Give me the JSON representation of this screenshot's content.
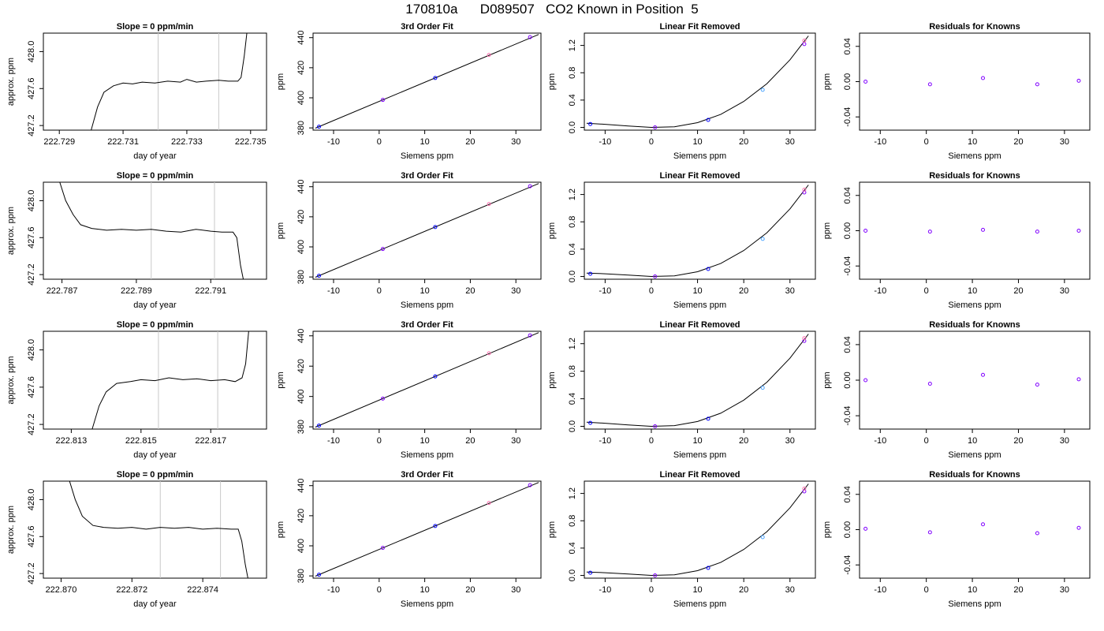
{
  "title": "170810a      D089507   CO2 Known in Position  5",
  "colors": {
    "line": "#000000",
    "grid_marker": "#c8c8c8",
    "point_purple": "#8000ff",
    "point_blue": "#0000ff",
    "point_light_blue": "#4aa3ff",
    "point_pink": "#ff70b0",
    "frame": "#000000"
  },
  "chart_data": [
    {
      "type": "line",
      "title": "Slope =  0  ppm/min",
      "xlabel": "day of year",
      "ylabel": "approx. ppm",
      "xlim": [
        222.7285,
        222.7355
      ],
      "ylim": [
        427.15,
        428.2
      ],
      "xticks": [
        "222.729",
        "222.731",
        "222.733",
        "222.735"
      ],
      "yticks": [
        "427.2",
        "427.6",
        "428.0"
      ],
      "vlines": [
        222.7321,
        222.734
      ],
      "trace": [
        [
          222.73,
          427.15
        ],
        [
          222.7302,
          427.4
        ],
        [
          222.7304,
          427.56
        ],
        [
          222.7307,
          427.63
        ],
        [
          222.731,
          427.66
        ],
        [
          222.7313,
          427.65
        ],
        [
          222.7316,
          427.67
        ],
        [
          222.732,
          427.66
        ],
        [
          222.7324,
          427.68
        ],
        [
          222.7328,
          427.67
        ],
        [
          222.733,
          427.7
        ],
        [
          222.7333,
          427.67
        ],
        [
          222.7336,
          427.68
        ],
        [
          222.734,
          427.69
        ],
        [
          222.7343,
          427.68
        ],
        [
          222.7346,
          427.68
        ],
        [
          222.7347,
          427.72
        ],
        [
          222.7348,
          427.95
        ],
        [
          222.7349,
          428.25
        ]
      ]
    },
    {
      "type": "scatter",
      "title": "3rd Order Fit",
      "xlabel": "Siemens ppm",
      "ylabel": "ppm",
      "xlim": [
        -14.5,
        35.5
      ],
      "ylim": [
        378.5,
        443
      ],
      "xticks": [
        "-10",
        "0",
        "10",
        "20",
        "30"
      ],
      "yticks": [
        "380",
        "400",
        "420",
        "440"
      ],
      "points": [
        [
          -13.2,
          380.8
        ],
        [
          0.8,
          398.6
        ],
        [
          12.3,
          413.2
        ],
        [
          24.1,
          428.5
        ],
        [
          33.1,
          440.3
        ]
      ],
      "curve": [
        [
          -14,
          379.8
        ],
        [
          35,
          442.1
        ]
      ]
    },
    {
      "type": "scatter",
      "title": "Linear Fit Removed",
      "xlabel": "Siemens ppm",
      "ylabel": "ppm",
      "xlim": [
        -14.5,
        35.5
      ],
      "ylim": [
        -0.04,
        1.38
      ],
      "xticks": [
        "-10",
        "0",
        "10",
        "20",
        "30"
      ],
      "yticks": [
        "0.0",
        "0.4",
        "0.8",
        "1.2"
      ],
      "points": [
        [
          -13.2,
          0.05
        ],
        [
          0.8,
          0.0
        ],
        [
          12.3,
          0.11
        ],
        [
          24.1,
          0.55
        ],
        [
          33.1,
          1.22
        ],
        [
          33.1,
          1.27
        ]
      ],
      "curve": [
        [
          -14,
          0.06
        ],
        [
          -10,
          0.045
        ],
        [
          -5,
          0.02
        ],
        [
          0,
          0.0
        ],
        [
          5,
          0.01
        ],
        [
          10,
          0.07
        ],
        [
          15,
          0.19
        ],
        [
          20,
          0.38
        ],
        [
          25,
          0.64
        ],
        [
          30,
          0.99
        ],
        [
          34,
          1.34
        ]
      ]
    },
    {
      "type": "scatter",
      "title": "Residuals for Knowns",
      "xlabel": "Siemens ppm",
      "ylabel": "ppm",
      "xlim": [
        -14.5,
        35.5
      ],
      "ylim": [
        -0.055,
        0.055
      ],
      "xticks": [
        "-10",
        "0",
        "10",
        "20",
        "30"
      ],
      "yticks": [
        "-0.04",
        "0.00",
        "0.04"
      ],
      "points": [
        [
          -13.2,
          0.0
        ],
        [
          0.8,
          -0.003
        ],
        [
          12.3,
          0.004
        ],
        [
          24.1,
          -0.003
        ],
        [
          33.1,
          0.001
        ]
      ]
    },
    {
      "type": "line",
      "title": "Slope =  0  ppm/min",
      "xlabel": "day of year",
      "ylabel": "approx. ppm",
      "xlim": [
        222.7865,
        222.7925
      ],
      "ylim": [
        427.15,
        428.2
      ],
      "xticks": [
        "222.787",
        "222.789",
        "222.791"
      ],
      "yticks": [
        "427.2",
        "427.6",
        "428.0"
      ],
      "vlines": [
        222.7894,
        222.7911
      ],
      "trace": [
        [
          222.7869,
          428.25
        ],
        [
          222.7871,
          428.0
        ],
        [
          222.7873,
          427.85
        ],
        [
          222.7875,
          427.74
        ],
        [
          222.7878,
          427.7
        ],
        [
          222.7882,
          427.68
        ],
        [
          222.7886,
          427.69
        ],
        [
          222.789,
          427.68
        ],
        [
          222.7894,
          427.69
        ],
        [
          222.7898,
          427.67
        ],
        [
          222.7902,
          427.66
        ],
        [
          222.7906,
          427.69
        ],
        [
          222.791,
          427.67
        ],
        [
          222.7913,
          427.66
        ],
        [
          222.7916,
          427.66
        ],
        [
          222.7917,
          427.6
        ],
        [
          222.7918,
          427.3
        ],
        [
          222.7919,
          427.1
        ]
      ]
    },
    {
      "type": "scatter",
      "title": "3rd Order Fit",
      "xlabel": "Siemens ppm",
      "ylabel": "ppm",
      "xlim": [
        -14.5,
        35.5
      ],
      "ylim": [
        378.5,
        443
      ],
      "xticks": [
        "-10",
        "0",
        "10",
        "20",
        "30"
      ],
      "yticks": [
        "380",
        "400",
        "420",
        "440"
      ],
      "points": [
        [
          -13.2,
          380.8
        ],
        [
          0.8,
          398.6
        ],
        [
          12.3,
          413.2
        ],
        [
          24.1,
          428.5
        ],
        [
          33.1,
          440.3
        ]
      ],
      "curve": [
        [
          -14,
          379.8
        ],
        [
          35,
          442.1
        ]
      ]
    },
    {
      "type": "scatter",
      "title": "Linear Fit Removed",
      "xlabel": "Siemens ppm",
      "ylabel": "ppm",
      "xlim": [
        -14.5,
        35.5
      ],
      "ylim": [
        -0.04,
        1.38
      ],
      "xticks": [
        "-10",
        "0",
        "10",
        "20",
        "30"
      ],
      "yticks": [
        "0.0",
        "0.4",
        "0.8",
        "1.2"
      ],
      "points": [
        [
          -13.2,
          0.04
        ],
        [
          0.8,
          0.0
        ],
        [
          12.3,
          0.11
        ],
        [
          24.1,
          0.55
        ],
        [
          33.1,
          1.23
        ],
        [
          33.1,
          1.27
        ]
      ],
      "curve": [
        [
          -14,
          0.05
        ],
        [
          -10,
          0.04
        ],
        [
          -5,
          0.02
        ],
        [
          0,
          0.0
        ],
        [
          5,
          0.01
        ],
        [
          10,
          0.07
        ],
        [
          15,
          0.19
        ],
        [
          20,
          0.38
        ],
        [
          25,
          0.64
        ],
        [
          30,
          0.99
        ],
        [
          34,
          1.34
        ]
      ]
    },
    {
      "type": "scatter",
      "title": "Residuals for Knowns",
      "xlabel": "Siemens ppm",
      "ylabel": "ppm",
      "xlim": [
        -14.5,
        35.5
      ],
      "ylim": [
        -0.055,
        0.055
      ],
      "xticks": [
        "-10",
        "0",
        "10",
        "20",
        "30"
      ],
      "yticks": [
        "-0.04",
        "0.00",
        "0.04"
      ],
      "points": [
        [
          -13.2,
          0.0
        ],
        [
          0.8,
          -0.001
        ],
        [
          12.3,
          0.001
        ],
        [
          24.1,
          -0.001
        ],
        [
          33.1,
          0.0
        ]
      ]
    },
    {
      "type": "line",
      "title": "Slope =  0  ppm/min",
      "xlabel": "day of year",
      "ylabel": "approx. ppm",
      "xlim": [
        222.8122,
        222.8186
      ],
      "ylim": [
        427.15,
        428.2
      ],
      "xticks": [
        "222.813",
        "222.815",
        "222.817"
      ],
      "yticks": [
        "427.2",
        "427.6",
        "428.0"
      ],
      "vlines": [
        222.8155,
        222.8172
      ],
      "trace": [
        [
          222.8136,
          427.15
        ],
        [
          222.8138,
          427.4
        ],
        [
          222.814,
          427.55
        ],
        [
          222.8143,
          427.64
        ],
        [
          222.8147,
          427.66
        ],
        [
          222.815,
          427.68
        ],
        [
          222.8154,
          427.67
        ],
        [
          222.8158,
          427.7
        ],
        [
          222.8162,
          427.68
        ],
        [
          222.8166,
          427.69
        ],
        [
          222.817,
          427.67
        ],
        [
          222.8174,
          427.68
        ],
        [
          222.8177,
          427.66
        ],
        [
          222.8179,
          427.7
        ],
        [
          222.818,
          427.85
        ],
        [
          222.8181,
          428.25
        ]
      ]
    },
    {
      "type": "scatter",
      "title": "3rd Order Fit",
      "xlabel": "Siemens ppm",
      "ylabel": "ppm",
      "xlim": [
        -14.5,
        35.5
      ],
      "ylim": [
        378.5,
        443
      ],
      "xticks": [
        "-10",
        "0",
        "10",
        "20",
        "30"
      ],
      "yticks": [
        "380",
        "400",
        "420",
        "440"
      ],
      "points": [
        [
          -13.2,
          380.8
        ],
        [
          0.8,
          398.6
        ],
        [
          12.3,
          413.2
        ],
        [
          24.1,
          428.5
        ],
        [
          33.1,
          440.3
        ]
      ],
      "curve": [
        [
          -14,
          379.8
        ],
        [
          35,
          442.1
        ]
      ]
    },
    {
      "type": "scatter",
      "title": "Linear Fit Removed",
      "xlabel": "Siemens ppm",
      "ylabel": "ppm",
      "xlim": [
        -14.5,
        35.5
      ],
      "ylim": [
        -0.04,
        1.38
      ],
      "xticks": [
        "-10",
        "0",
        "10",
        "20",
        "30"
      ],
      "yticks": [
        "0.0",
        "0.4",
        "0.8",
        "1.2"
      ],
      "points": [
        [
          -13.2,
          0.05
        ],
        [
          0.8,
          0.0
        ],
        [
          12.3,
          0.11
        ],
        [
          24.1,
          0.56
        ],
        [
          33.1,
          1.24
        ],
        [
          33.1,
          1.28
        ]
      ],
      "curve": [
        [
          -14,
          0.06
        ],
        [
          -10,
          0.045
        ],
        [
          -5,
          0.02
        ],
        [
          0,
          0.0
        ],
        [
          5,
          0.01
        ],
        [
          10,
          0.07
        ],
        [
          15,
          0.19
        ],
        [
          20,
          0.38
        ],
        [
          25,
          0.64
        ],
        [
          30,
          0.99
        ],
        [
          34,
          1.34
        ]
      ]
    },
    {
      "type": "scatter",
      "title": "Residuals for Knowns",
      "xlabel": "Siemens ppm",
      "ylabel": "ppm",
      "xlim": [
        -14.5,
        35.5
      ],
      "ylim": [
        -0.055,
        0.055
      ],
      "xticks": [
        "-10",
        "0",
        "10",
        "20",
        "30"
      ],
      "yticks": [
        "-0.04",
        "0.00",
        "0.04"
      ],
      "points": [
        [
          -13.2,
          0.0
        ],
        [
          0.8,
          -0.004
        ],
        [
          12.3,
          0.006
        ],
        [
          24.1,
          -0.005
        ],
        [
          33.1,
          0.001
        ]
      ]
    },
    {
      "type": "line",
      "title": "Slope =  0  ppm/min",
      "xlabel": "day of year",
      "ylabel": "approx. ppm",
      "xlim": [
        222.8695,
        222.8758
      ],
      "ylim": [
        427.15,
        428.2
      ],
      "xticks": [
        "222.870",
        "222.872",
        "222.874"
      ],
      "yticks": [
        "427.2",
        "427.6",
        "428.0"
      ],
      "vlines": [
        222.8728,
        222.8745
      ],
      "trace": [
        [
          222.8702,
          428.25
        ],
        [
          222.8704,
          428.0
        ],
        [
          222.8706,
          427.82
        ],
        [
          222.8709,
          427.72
        ],
        [
          222.8712,
          427.7
        ],
        [
          222.8716,
          427.69
        ],
        [
          222.872,
          427.7
        ],
        [
          222.8724,
          427.68
        ],
        [
          222.8728,
          427.7
        ],
        [
          222.8732,
          427.69
        ],
        [
          222.8736,
          427.7
        ],
        [
          222.874,
          427.68
        ],
        [
          222.8744,
          427.69
        ],
        [
          222.8748,
          427.68
        ],
        [
          222.875,
          427.68
        ],
        [
          222.8751,
          427.55
        ],
        [
          222.8752,
          427.3
        ],
        [
          222.8753,
          427.1
        ]
      ]
    },
    {
      "type": "scatter",
      "title": "3rd Order Fit",
      "xlabel": "Siemens ppm",
      "ylabel": "ppm",
      "xlim": [
        -14.5,
        35.5
      ],
      "ylim": [
        378.5,
        443
      ],
      "xticks": [
        "-10",
        "0",
        "10",
        "20",
        "30"
      ],
      "yticks": [
        "380",
        "400",
        "420",
        "440"
      ],
      "points": [
        [
          -13.2,
          380.8
        ],
        [
          0.8,
          398.6
        ],
        [
          12.3,
          413.2
        ],
        [
          24.1,
          428.5
        ],
        [
          33.1,
          440.3
        ]
      ],
      "curve": [
        [
          -14,
          379.8
        ],
        [
          35,
          442.1
        ]
      ]
    },
    {
      "type": "scatter",
      "title": "Linear Fit Removed",
      "xlabel": "Siemens ppm",
      "ylabel": "ppm",
      "xlim": [
        -14.5,
        35.5
      ],
      "ylim": [
        -0.04,
        1.38
      ],
      "xticks": [
        "-10",
        "0",
        "10",
        "20",
        "30"
      ],
      "yticks": [
        "0.0",
        "0.4",
        "0.8",
        "1.2"
      ],
      "points": [
        [
          -13.2,
          0.04
        ],
        [
          0.8,
          0.0
        ],
        [
          12.3,
          0.11
        ],
        [
          24.1,
          0.56
        ],
        [
          33.1,
          1.23
        ],
        [
          33.1,
          1.27
        ]
      ],
      "curve": [
        [
          -14,
          0.05
        ],
        [
          -10,
          0.04
        ],
        [
          -5,
          0.02
        ],
        [
          0,
          0.0
        ],
        [
          5,
          0.01
        ],
        [
          10,
          0.07
        ],
        [
          15,
          0.19
        ],
        [
          20,
          0.38
        ],
        [
          25,
          0.64
        ],
        [
          30,
          0.99
        ],
        [
          34,
          1.34
        ]
      ]
    },
    {
      "type": "scatter",
      "title": "Residuals for Knowns",
      "xlabel": "Siemens ppm",
      "ylabel": "ppm",
      "xlim": [
        -14.5,
        35.5
      ],
      "ylim": [
        -0.055,
        0.055
      ],
      "xticks": [
        "-10",
        "0",
        "10",
        "20",
        "30"
      ],
      "yticks": [
        "-0.04",
        "0.00",
        "0.04"
      ],
      "points": [
        [
          -13.2,
          0.001
        ],
        [
          0.8,
          -0.003
        ],
        [
          12.3,
          0.006
        ],
        [
          24.1,
          -0.004
        ],
        [
          33.1,
          0.002
        ]
      ]
    }
  ]
}
